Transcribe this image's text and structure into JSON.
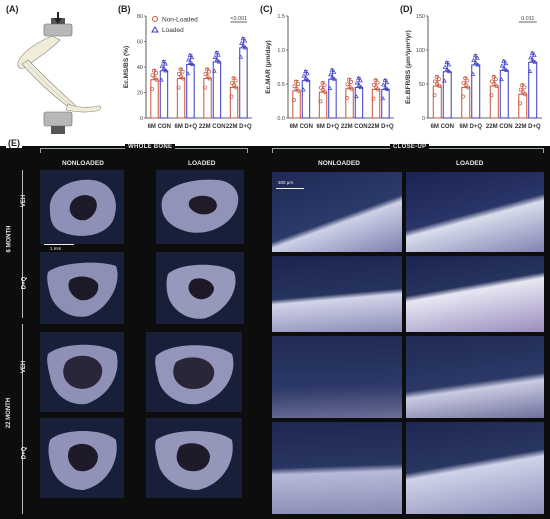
{
  "panels": {
    "A": "(A)",
    "B": "(B)",
    "C": "(C)",
    "D": "(D)",
    "E": "(E)"
  },
  "legend": {
    "non_loaded": "Non-Loaded",
    "loaded": "Loaded"
  },
  "colors": {
    "non_loaded": "#c8553d",
    "loaded": "#3a3ac8"
  },
  "chart_data": [
    {
      "type": "bar",
      "panel": "B",
      "ylabel": "Ec.MS/BS (%)",
      "ylim": [
        0,
        80
      ],
      "yticks": [
        "0",
        "20",
        "40",
        "60",
        "80"
      ],
      "categories": [
        "6M CON",
        "6M D+Q",
        "22M CON",
        "22M D+Q"
      ],
      "series": [
        {
          "name": "Non-Loaded",
          "values": [
            30,
            31,
            31,
            24
          ]
        },
        {
          "name": "Loaded",
          "values": [
            37,
            42,
            44,
            55
          ]
        }
      ],
      "annotation": "<0.001"
    },
    {
      "type": "bar",
      "panel": "C",
      "ylabel": "Ec.MAR (μm/day)",
      "ylim": [
        0,
        1.5
      ],
      "yticks": [
        "0.0",
        "0.5",
        "1.0",
        "1.5"
      ],
      "categories": [
        "6M CON",
        "6M D+Q",
        "22M CON",
        "22M D+Q"
      ],
      "series": [
        {
          "name": "Non-Loaded",
          "values": [
            0.4,
            0.38,
            0.43,
            0.42
          ]
        },
        {
          "name": "Loaded",
          "values": [
            0.55,
            0.57,
            0.45,
            0.42
          ]
        }
      ],
      "annotation": ""
    },
    {
      "type": "bar",
      "panel": "D",
      "ylabel": "Ec.BFR/BS (μm³/μm²/yr)",
      "ylim": [
        0,
        150
      ],
      "yticks": [
        "0",
        "50",
        "100",
        "150"
      ],
      "categories": [
        "6M CON",
        "6M D+Q",
        "22M CON",
        "22M D+Q"
      ],
      "series": [
        {
          "name": "Non-Loaded",
          "values": [
            47,
            45,
            47,
            35
          ]
        },
        {
          "name": "Loaded",
          "values": [
            68,
            78,
            70,
            82
          ]
        }
      ],
      "annotation": "0.011"
    }
  ],
  "histology": {
    "whole_bone": "WHOLE BONE",
    "close_up": "CLOSE-UP",
    "nonloaded_1": "NONLOADED",
    "loaded_1": "LOADED",
    "nonloaded_2": "NONLOADED",
    "loaded_2": "LOADED",
    "age_6": "6 MONTH",
    "age_22": "22 MONTH",
    "veh_1": "VEH",
    "dq_1": "D+Q",
    "veh_2": "VEH",
    "dq_2": "D+Q",
    "scale_whole": "1 mm",
    "scale_close": "300 μm"
  }
}
